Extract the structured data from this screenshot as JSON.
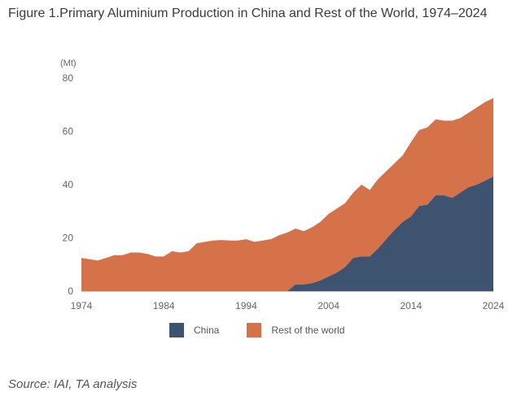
{
  "title": "Figure 1.Primary Aluminium Production in China and Rest of the World, 1974–2024",
  "source": "Source: IAI, TA analysis",
  "colors": {
    "china": "#3d5370",
    "rest": "#d6724a"
  },
  "chart_data": {
    "type": "area",
    "stacked": true,
    "ylabel": "(Mt)",
    "ylim": [
      0,
      80
    ],
    "yticks": [
      0,
      20,
      40,
      60,
      80
    ],
    "xlim": [
      1974,
      2024
    ],
    "xticks": [
      "1974",
      "1984",
      "1994",
      "2004",
      "2014",
      "2024"
    ],
    "legend_position": "bottom",
    "x": [
      1974,
      1975,
      1976,
      1977,
      1978,
      1979,
      1980,
      1981,
      1982,
      1983,
      1984,
      1985,
      1986,
      1987,
      1988,
      1989,
      1990,
      1991,
      1992,
      1993,
      1994,
      1995,
      1996,
      1997,
      1998,
      1999,
      2000,
      2001,
      2002,
      2003,
      2004,
      2005,
      2006,
      2007,
      2008,
      2009,
      2010,
      2011,
      2012,
      2013,
      2014,
      2015,
      2016,
      2017,
      2018,
      2019,
      2020,
      2021,
      2022,
      2023,
      2024
    ],
    "series": [
      {
        "name": "China",
        "values": [
          0,
          0,
          0,
          0,
          0,
          0,
          0,
          0,
          0,
          0,
          0,
          0,
          0,
          0,
          0,
          0,
          0,
          0,
          0,
          0,
          0,
          0,
          0,
          0,
          0,
          0,
          2.5,
          2.5,
          3,
          4,
          5.5,
          7,
          9,
          12.5,
          13,
          13,
          16,
          19.5,
          23,
          26,
          28,
          32,
          32.5,
          36,
          36,
          35,
          37,
          39,
          40,
          41.5,
          43
        ],
        "color": "#3d5370"
      },
      {
        "name": "Rest of the world",
        "values": [
          12.5,
          12,
          11.5,
          12.5,
          13.5,
          13.5,
          14.5,
          14.5,
          14,
          13,
          13,
          15,
          14.5,
          15,
          18,
          18.5,
          19,
          19.2,
          19,
          19,
          19.5,
          18.5,
          19,
          19.5,
          21,
          22,
          21,
          20,
          21,
          22,
          23.5,
          24,
          24,
          24.5,
          27,
          25,
          26,
          25.5,
          25,
          25,
          28,
          28.5,
          29,
          28.5,
          28,
          29,
          28,
          28,
          29,
          29.5,
          29.5
        ],
        "color": "#d6724a"
      }
    ]
  }
}
